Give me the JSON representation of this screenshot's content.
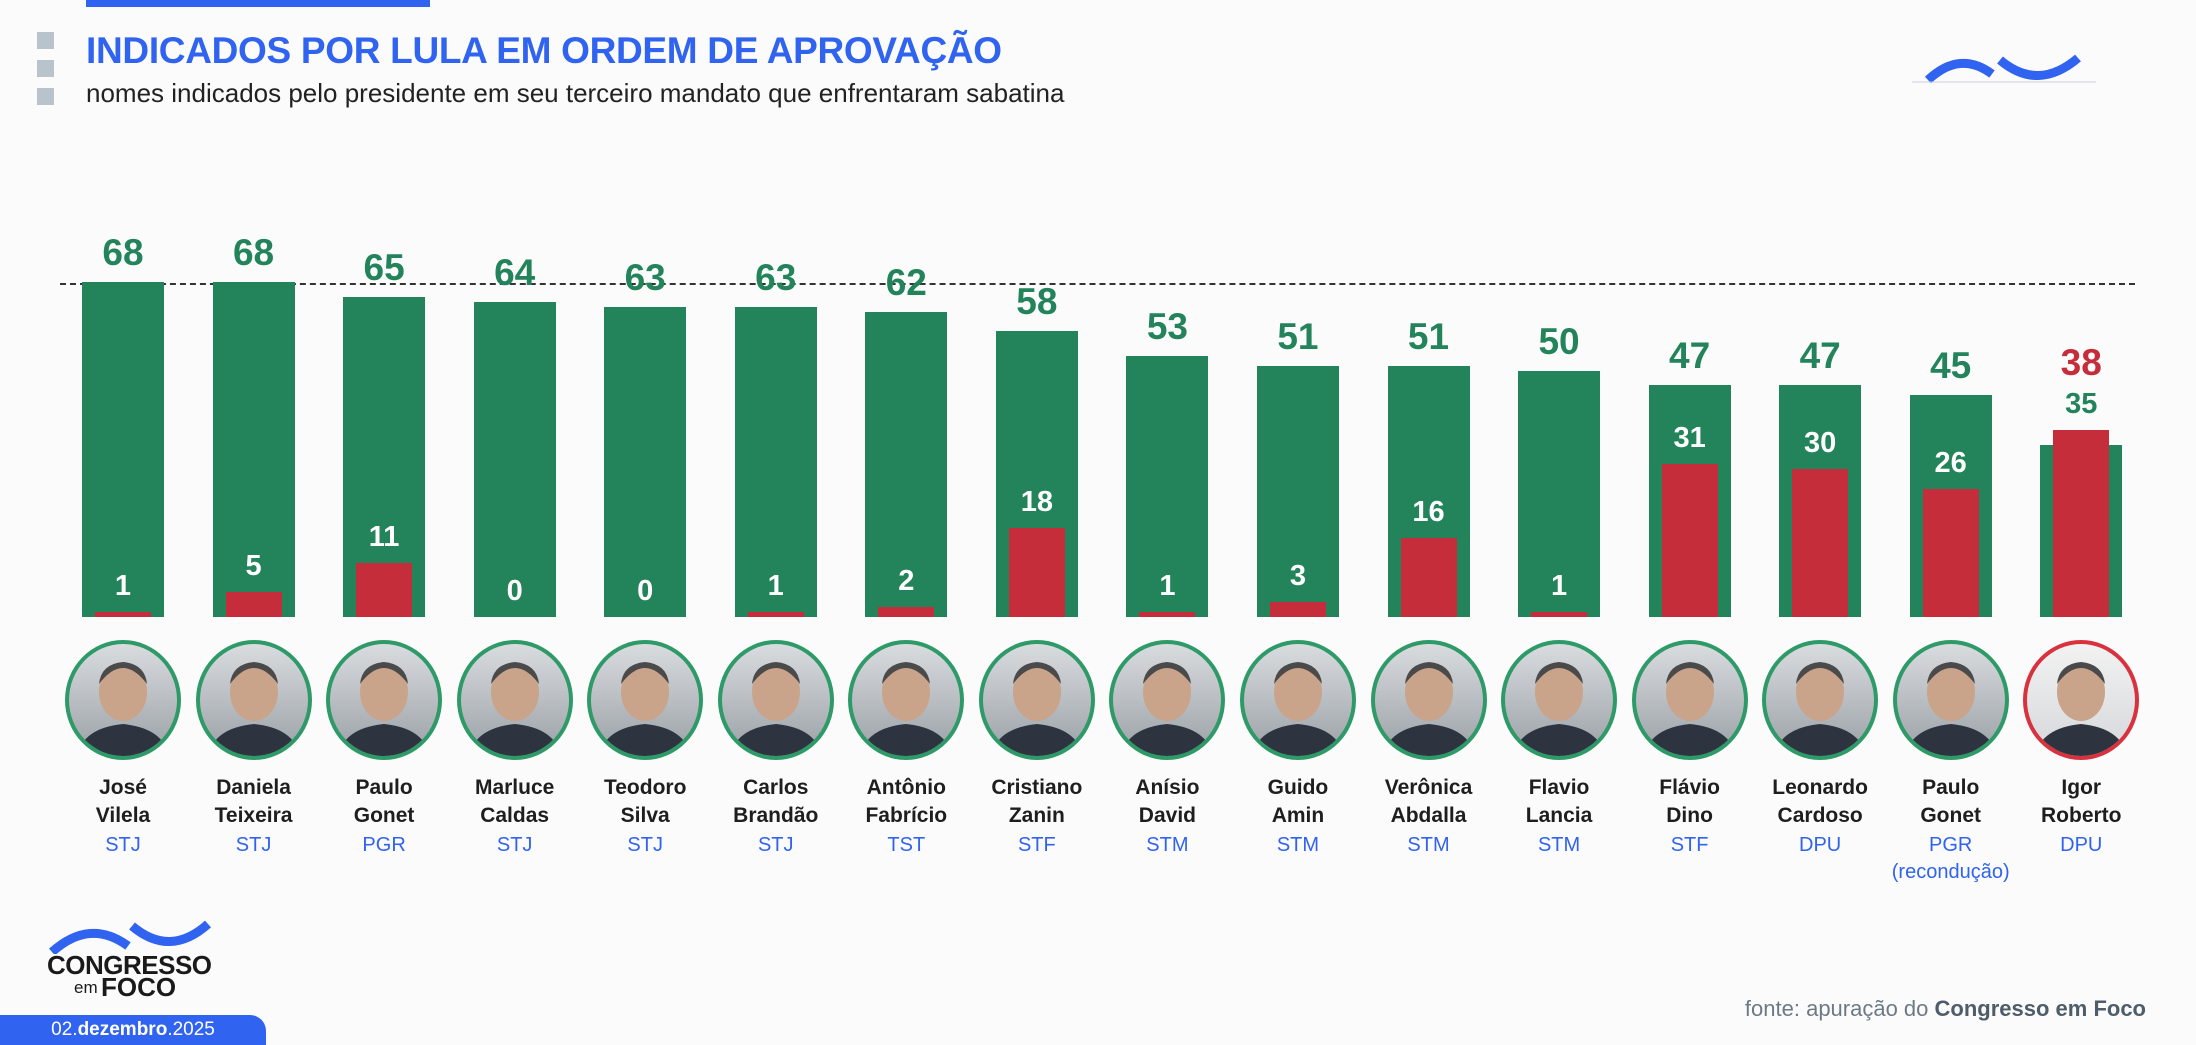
{
  "header": {
    "title": "INDICADOS POR LULA EM ORDEM DE APROVAÇÃO",
    "subtitle": "nomes indicados pelo presidente em seu terceiro mandato que enfrentaram sabatina"
  },
  "colors": {
    "favor": "#23835a",
    "contra": "#c52d3a",
    "accent": "#2f63f0"
  },
  "chart_data": {
    "type": "bar",
    "title": "INDICADOS POR LULA EM ORDEM DE APROVAÇÃO",
    "categories": [
      "José Vilela",
      "Daniela Teixeira",
      "Paulo Gonet",
      "Marluce Caldas",
      "Teodoro Silva",
      "Carlos Brandão",
      "Antônio Fabrício",
      "Cristiano Zanin",
      "Anísio David",
      "Guido Amin",
      "Verônica Abdalla",
      "Flavio Lancia",
      "Flávio Dino",
      "Leonardo Cardoso",
      "Paulo Gonet",
      "Igor Roberto"
    ],
    "name_lines": [
      [
        "José",
        "Vilela"
      ],
      [
        "Daniela",
        "Teixeira"
      ],
      [
        "Paulo",
        "Gonet"
      ],
      [
        "Marluce",
        "Caldas"
      ],
      [
        "Teodoro",
        "Silva"
      ],
      [
        "Carlos",
        "Brandão"
      ],
      [
        "Antônio",
        "Fabrício"
      ],
      [
        "Cristiano",
        "Zanin"
      ],
      [
        "Anísio",
        "David"
      ],
      [
        "Guido",
        "Amin"
      ],
      [
        "Verônica",
        "Abdalla"
      ],
      [
        "Flavio",
        "Lancia"
      ],
      [
        "Flávio",
        "Dino"
      ],
      [
        "Leonardo",
        "Cardoso"
      ],
      [
        "Paulo",
        "Gonet"
      ],
      [
        "Igor",
        "Roberto"
      ]
    ],
    "courts": [
      "STJ",
      "STJ",
      "PGR",
      "STJ",
      "STJ",
      "STJ",
      "TST",
      "STF",
      "STM",
      "STM",
      "STM",
      "STM",
      "STF",
      "DPU",
      "PGR (recondução)",
      "DPU"
    ],
    "court_lines": [
      [
        "STJ"
      ],
      [
        "STJ"
      ],
      [
        "PGR"
      ],
      [
        "STJ"
      ],
      [
        "STJ"
      ],
      [
        "STJ"
      ],
      [
        "TST"
      ],
      [
        "STF"
      ],
      [
        "STM"
      ],
      [
        "STM"
      ],
      [
        "STM"
      ],
      [
        "STM"
      ],
      [
        "STF"
      ],
      [
        "DPU"
      ],
      [
        "PGR",
        "(recondução)"
      ],
      [
        "DPU"
      ]
    ],
    "series": [
      {
        "values": [
          68,
          68,
          65,
          64,
          63,
          63,
          62,
          58,
          53,
          51,
          51,
          50,
          47,
          47,
          45,
          35
        ],
        "color": "#23835a"
      },
      {
        "values": [
          1,
          5,
          11,
          0,
          0,
          1,
          2,
          18,
          1,
          3,
          16,
          1,
          31,
          30,
          26,
          38
        ],
        "color": "#c52d3a"
      }
    ],
    "reference_line": 68,
    "ylim": [
      0,
      68
    ],
    "grid": false,
    "photo_border": [
      "green",
      "green",
      "green",
      "green",
      "green",
      "green",
      "green",
      "green",
      "green",
      "green",
      "green",
      "green",
      "green",
      "green",
      "green",
      "red"
    ]
  },
  "footer": {
    "logo_top": "CONGRESSO",
    "logo_em": "em",
    "logo_foco": "FOCO",
    "date_day": "02.",
    "date_month": "dezembro",
    "date_year": ".2025",
    "source_prefix": "fonte: apuração do ",
    "source_name": "Congresso em Foco"
  }
}
